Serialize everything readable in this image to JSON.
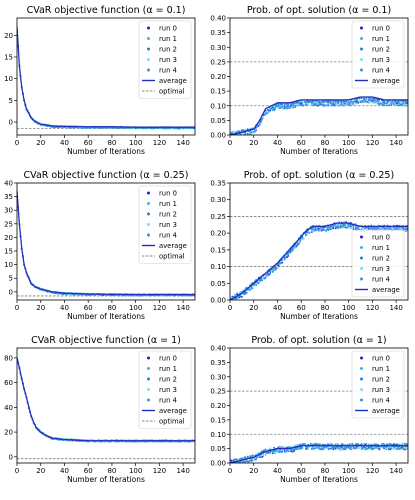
{
  "colors": {
    "run0": "#1f1fd6",
    "run1": "#35b6e6",
    "run2": "#2a7fd4",
    "run3": "#7fe0e8",
    "run4": "#3a8fe0",
    "average": "#1f2fbf",
    "optimal": "#7f7f7f",
    "axis": "#000000"
  },
  "chart_data": [
    {
      "type": "scatter",
      "title": "CVaR objective function (α = 0.1)",
      "xlabel": "Number of Iterations",
      "ylabel": "",
      "xlim": [
        0,
        150
      ],
      "ylim": [
        -3,
        24
      ],
      "xticks": [
        0,
        20,
        40,
        60,
        80,
        100,
        120,
        140
      ],
      "yticks": [
        0,
        5,
        10,
        15,
        20
      ],
      "legend_position": "upper right",
      "legend": [
        "run 0",
        "run 1",
        "run 2",
        "run 3",
        "run 4",
        "average",
        "optimal"
      ],
      "optimal": -1.5,
      "series": [
        {
          "name": "average",
          "x": [
            0,
            2,
            4,
            6,
            8,
            10,
            12,
            15,
            20,
            30,
            40,
            60,
            80,
            100,
            120,
            150
          ],
          "values": [
            22,
            13,
            8,
            5,
            3,
            2,
            1,
            0.2,
            -0.5,
            -0.9,
            -1.0,
            -1.1,
            -1.1,
            -1.2,
            -1.2,
            -1.2
          ]
        }
      ]
    },
    {
      "type": "scatter",
      "title": "Prob. of opt. solution (α = 0.1)",
      "xlabel": "Number of Iterations",
      "ylabel": "",
      "xlim": [
        0,
        150
      ],
      "ylim": [
        0,
        0.4
      ],
      "xticks": [
        0,
        20,
        40,
        60,
        80,
        100,
        120,
        140
      ],
      "yticks": [
        0.0,
        0.05,
        0.1,
        0.15,
        0.2,
        0.25,
        0.3,
        0.35,
        0.4
      ],
      "legend_position": "upper right",
      "legend": [
        "run 0",
        "run 1",
        "run 2",
        "run 3",
        "run 4",
        "average"
      ],
      "reference_lines": [
        0.1,
        0.25
      ],
      "series": [
        {
          "name": "average",
          "x": [
            0,
            10,
            20,
            25,
            30,
            35,
            40,
            50,
            60,
            70,
            80,
            90,
            100,
            110,
            120,
            130,
            140,
            150
          ],
          "values": [
            0.0,
            0.01,
            0.02,
            0.05,
            0.09,
            0.1,
            0.11,
            0.11,
            0.12,
            0.12,
            0.12,
            0.12,
            0.12,
            0.13,
            0.13,
            0.12,
            0.12,
            0.12
          ]
        }
      ]
    },
    {
      "type": "scatter",
      "title": "CVaR objective function (α = 0.25)",
      "xlabel": "Number of Iterations",
      "ylabel": "",
      "xlim": [
        0,
        150
      ],
      "ylim": [
        -3,
        40
      ],
      "xticks": [
        0,
        20,
        40,
        60,
        80,
        100,
        120,
        140
      ],
      "yticks": [
        0,
        5,
        10,
        15,
        20,
        25,
        30,
        35,
        40
      ],
      "legend_position": "upper right",
      "legend": [
        "run 0",
        "run 1",
        "run 2",
        "run 3",
        "run 4",
        "average",
        "optimal"
      ],
      "optimal": -1.5,
      "series": [
        {
          "name": "average",
          "x": [
            0,
            2,
            4,
            6,
            8,
            10,
            12,
            15,
            20,
            30,
            40,
            60,
            80,
            100,
            120,
            150
          ],
          "values": [
            37,
            25,
            16,
            10,
            7,
            5,
            3,
            2,
            1,
            0,
            -0.5,
            -0.8,
            -0.9,
            -1.0,
            -1.0,
            -1.0
          ]
        }
      ]
    },
    {
      "type": "scatter",
      "title": "Prob. of opt. solution  (α = 0.25)",
      "xlabel": "Number of Iterations",
      "ylabel": "",
      "xlim": [
        0,
        150
      ],
      "ylim": [
        0,
        0.35
      ],
      "xticks": [
        0,
        20,
        40,
        60,
        80,
        100,
        120,
        140
      ],
      "yticks": [
        0.0,
        0.05,
        0.1,
        0.15,
        0.2,
        0.25,
        0.3,
        0.35
      ],
      "legend_position": "lower right",
      "legend": [
        "run 0",
        "run 1",
        "run 2",
        "run 3",
        "run 4",
        "average"
      ],
      "reference_lines": [
        0.1,
        0.25
      ],
      "series": [
        {
          "name": "average",
          "x": [
            0,
            10,
            20,
            30,
            40,
            50,
            55,
            60,
            65,
            70,
            80,
            90,
            100,
            110,
            120,
            130,
            140,
            150
          ],
          "values": [
            0.0,
            0.02,
            0.05,
            0.08,
            0.11,
            0.15,
            0.17,
            0.19,
            0.21,
            0.22,
            0.22,
            0.23,
            0.23,
            0.22,
            0.22,
            0.22,
            0.22,
            0.22
          ]
        }
      ]
    },
    {
      "type": "scatter",
      "title": "CVaR objective function (α = 1)",
      "xlabel": "Number of Iterations",
      "ylabel": "",
      "xlim": [
        0,
        150
      ],
      "ylim": [
        -5,
        88
      ],
      "xticks": [
        0,
        20,
        40,
        60,
        80,
        100,
        120,
        140
      ],
      "yticks": [
        0,
        20,
        40,
        60,
        80
      ],
      "legend_position": "upper right",
      "legend": [
        "run 0",
        "run 1",
        "run 2",
        "run 3",
        "run 4",
        "average",
        "optimal"
      ],
      "optimal": -1.5,
      "series": [
        {
          "name": "average",
          "x": [
            0,
            2,
            4,
            6,
            8,
            10,
            12,
            14,
            16,
            20,
            25,
            30,
            40,
            60,
            80,
            100,
            120,
            150
          ],
          "values": [
            80,
            72,
            63,
            55,
            48,
            40,
            33,
            28,
            24,
            20,
            17,
            15,
            14,
            13,
            13,
            13,
            13,
            13
          ]
        }
      ]
    },
    {
      "type": "scatter",
      "title": "Prob. of opt. solution (α = 1)",
      "xlabel": "Number of Iterations",
      "ylabel": "",
      "xlim": [
        0,
        150
      ],
      "ylim": [
        0,
        0.4
      ],
      "xticks": [
        0,
        20,
        40,
        60,
        80,
        100,
        120,
        140
      ],
      "yticks": [
        0.0,
        0.05,
        0.1,
        0.15,
        0.2,
        0.25,
        0.3,
        0.35,
        0.4
      ],
      "legend_position": "upper right",
      "legend": [
        "run 0",
        "run 1",
        "run 2",
        "run 3",
        "run 4",
        "average"
      ],
      "reference_lines": [
        0.1,
        0.25
      ],
      "series": [
        {
          "name": "average",
          "x": [
            0,
            10,
            20,
            30,
            40,
            50,
            60,
            70,
            80,
            100,
            120,
            150
          ],
          "values": [
            0.0,
            0.01,
            0.02,
            0.04,
            0.05,
            0.05,
            0.06,
            0.06,
            0.06,
            0.06,
            0.06,
            0.06
          ]
        }
      ]
    }
  ]
}
